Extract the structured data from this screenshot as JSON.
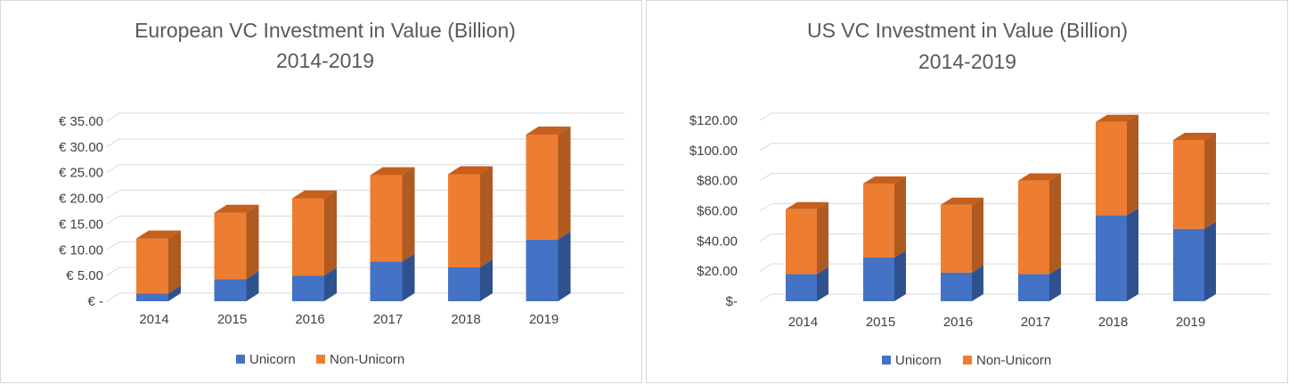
{
  "colors": {
    "unicorn": "#4472c4",
    "unicorn_side": "#2f528f",
    "unicorn_top": "#5b86d6",
    "non_unicorn": "#ed7d31",
    "non_unicorn_side": "#ae5a21",
    "non_unicorn_top": "#c65f1c",
    "grid": "#d9d9d9"
  },
  "chart_data": [
    {
      "type": "bar",
      "stacked": true,
      "title": "European VC Investment in Value (Billion)",
      "subtitle": "2014-2019",
      "categories": [
        "2014",
        "2015",
        "2016",
        "2017",
        "2018",
        "2019"
      ],
      "series": [
        {
          "name": "Unicorn",
          "values": [
            1.5,
            4.3,
            5.0,
            7.7,
            6.6,
            12.0
          ]
        },
        {
          "name": "Non-Unicorn",
          "values": [
            10.7,
            12.9,
            15.0,
            16.8,
            18.1,
            20.4
          ]
        }
      ],
      "ylim": [
        0,
        35
      ],
      "yticks": [
        0,
        5,
        10,
        15,
        20,
        25,
        30,
        35
      ],
      "ytick_labels": [
        "€ -",
        "€ 5.00",
        "€ 10.00",
        "€ 15.00",
        "€ 20.00",
        "€ 25.00",
        "€ 30.00",
        "€ 35.00"
      ],
      "grid": true,
      "legend": "bottom"
    },
    {
      "type": "bar",
      "stacked": true,
      "title": "US VC Investment in Value (Billion)",
      "subtitle": "2014-2019",
      "categories": [
        "2014",
        "2015",
        "2016",
        "2017",
        "2018",
        "2019"
      ],
      "series": [
        {
          "name": "Unicorn",
          "values": [
            18,
            29,
            19,
            18,
            57,
            48
          ]
        },
        {
          "name": "Non-Unicorn",
          "values": [
            43,
            49,
            45,
            62,
            62,
            59
          ]
        }
      ],
      "ylim": [
        0,
        120
      ],
      "yticks": [
        0,
        20,
        40,
        60,
        80,
        100,
        120
      ],
      "ytick_labels": [
        "$-",
        "$20.00",
        "$40.00",
        "$60.00",
        "$80.00",
        "$100.00",
        "$120.00"
      ],
      "grid": true,
      "legend": "bottom"
    }
  ]
}
